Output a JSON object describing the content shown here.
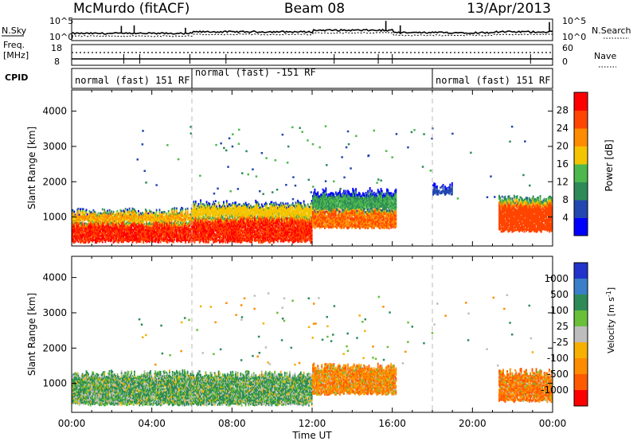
{
  "header": {
    "radar": "McMurdo (fitACF)",
    "beam": "Beam 08",
    "date": "13/Apr/2013"
  },
  "top_panels": {
    "nsky_label": "N.Sky",
    "nsky_ticks": [
      "10^5",
      "10^0"
    ],
    "nsearch_label": "N.Search",
    "nsearch_ticks": [
      "10^5",
      "10^0"
    ],
    "freq_label_1": "Freq.",
    "freq_label_2": "[MHz]",
    "freq_ticks": [
      "18",
      "8"
    ],
    "nave_label": "Nave",
    "nave_ticks": [
      "60",
      "0"
    ],
    "cpid_label": "CPID",
    "cpid_segments": [
      {
        "label": "normal (fast) 151 RF",
        "start_h": 0,
        "end_h": 6
      },
      {
        "label": "normal (fast) -151 RF",
        "start_h": 6,
        "end_h": 18
      },
      {
        "label": "normal (fast) 151 RF",
        "start_h": 18,
        "end_h": 24
      }
    ]
  },
  "x_axis": {
    "label": "Time UT",
    "ticks": [
      "00:00",
      "04:00",
      "08:00",
      "12:00",
      "16:00",
      "20:00",
      "00:00"
    ]
  },
  "chart_data": [
    {
      "type": "heatmap",
      "title": "",
      "xlabel": "Time UT",
      "ylabel": "Slant Range [km]",
      "xlim": [
        0,
        24
      ],
      "ylim": [
        180,
        4600
      ],
      "yticks": [
        "1000",
        "2000",
        "3000",
        "4000"
      ],
      "colorbar": {
        "label": "Power [dB]",
        "tick_labels": [
          "4",
          "8",
          "12",
          "16",
          "20",
          "24",
          "28"
        ],
        "colors": [
          "#0000ff",
          "#2247b0",
          "#2e8b57",
          "#4db84d",
          "#f5c400",
          "#ff8c00",
          "#ff4500",
          "#ff0000"
        ]
      },
      "regions": [
        {
          "x": [
            0.0,
            6.0
          ],
          "y": [
            300,
            900
          ],
          "value": 28
        },
        {
          "x": [
            0.0,
            6.0
          ],
          "y": [
            900,
            1150
          ],
          "value": 20
        },
        {
          "x": [
            6.0,
            12.0
          ],
          "y": [
            300,
            1050
          ],
          "value": 28
        },
        {
          "x": [
            6.0,
            12.0
          ],
          "y": [
            1050,
            1350
          ],
          "value": 18
        },
        {
          "x": [
            12.0,
            16.2
          ],
          "y": [
            700,
            1250
          ],
          "value": 24
        },
        {
          "x": [
            12.0,
            16.2
          ],
          "y": [
            1250,
            1700
          ],
          "value": 12
        },
        {
          "x": [
            21.3,
            24.0
          ],
          "y": [
            600,
            1500
          ],
          "value": 26
        },
        {
          "x": [
            18.0,
            19.0
          ],
          "y": [
            1650,
            1850
          ],
          "value": 6
        }
      ]
    },
    {
      "type": "heatmap",
      "title": "",
      "xlabel": "Time UT",
      "ylabel": "Slant Range [km]",
      "xlim": [
        0,
        24
      ],
      "ylim": [
        180,
        4600
      ],
      "yticks": [
        "1000",
        "2000",
        "3000",
        "4000"
      ],
      "colorbar": {
        "label": "Velocity [m s^-1]",
        "label_main": "Velocity [m s",
        "label_sup": "-1",
        "label_end": "]",
        "tick_labels": [
          "1000",
          "500",
          "100",
          "25",
          "-25",
          "-100",
          "-500",
          "-1000"
        ],
        "colors": [
          "#2233cc",
          "#3a7fc8",
          "#2e8b57",
          "#6abf3a",
          "#bdbdbd",
          "#f5b000",
          "#ff8c00",
          "#ff5a00",
          "#ff0000"
        ]
      },
      "regions": [
        {
          "x": [
            0.0,
            12.0
          ],
          "y": [
            400,
            1250
          ],
          "value": 100
        },
        {
          "x": [
            12.0,
            16.2
          ],
          "y": [
            700,
            1450
          ],
          "value": -300
        },
        {
          "x": [
            21.3,
            24.0
          ],
          "y": [
            500,
            1300
          ],
          "value": -450
        }
      ]
    }
  ]
}
